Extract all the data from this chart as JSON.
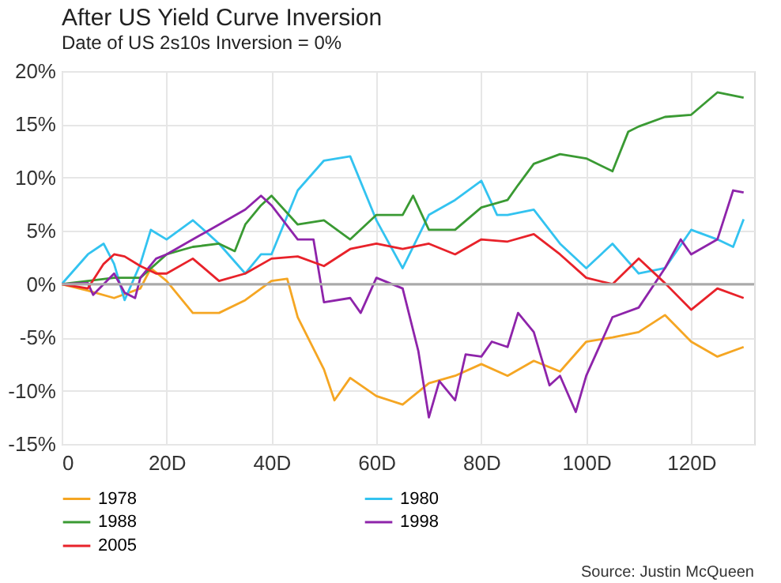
{
  "chart_data": {
    "type": "line",
    "title": "After US Yield Curve Inversion",
    "subtitle": "Date of US 2s10s Inversion = 0%",
    "annotations": [
      "Source: Justin McQueen"
    ],
    "xlim": [
      0,
      132
    ],
    "xticks": [
      0,
      {
        "value": 20,
        "label": "20D"
      },
      {
        "value": 40,
        "label": "40D"
      },
      {
        "value": 60,
        "label": "60D"
      },
      {
        "value": 80,
        "label": "80D"
      },
      {
        "value": 100,
        "label": "100D"
      },
      {
        "value": 120,
        "label": "120D"
      }
    ],
    "ylim": [
      -15,
      20
    ],
    "yticks": [
      {
        "value": -15,
        "label": "-15%"
      },
      {
        "value": -10,
        "label": "-10%"
      },
      {
        "value": -5,
        "label": "-5%"
      },
      {
        "value": 0,
        "label": "0%"
      },
      {
        "value": 5,
        "label": "5%"
      },
      {
        "value": 10,
        "label": "10%"
      },
      {
        "value": 15,
        "label": "15%"
      },
      {
        "value": 20,
        "label": "20%"
      }
    ],
    "grid": true,
    "legend": "bottom",
    "marker": "none",
    "line_style": "solid",
    "ref_lines": [
      {
        "axis": "y",
        "value": 0,
        "label": null,
        "color": "#aaaaaa"
      }
    ],
    "series": [
      {
        "name": "1978",
        "color": "#f5a623",
        "x": [
          0,
          5,
          10,
          15,
          17,
          20,
          25,
          30,
          35,
          40,
          43,
          45,
          50,
          52,
          55,
          60,
          65,
          70,
          75,
          80,
          85,
          90,
          95,
          100,
          105,
          110,
          115,
          120,
          125,
          130
        ],
        "values": [
          0,
          -0.6,
          -1.3,
          -0.4,
          1.5,
          0.3,
          -2.7,
          -2.7,
          -1.5,
          0.3,
          0.5,
          -3.1,
          -8,
          -10.9,
          -8.8,
          -10.5,
          -11.3,
          -9.3,
          -8.6,
          -7.5,
          -8.6,
          -7.2,
          -8.2,
          -5.4,
          -5,
          -4.5,
          -2.9,
          -5.4,
          -6.8,
          -5.9
        ]
      },
      {
        "name": "1980",
        "color": "#33c3f0",
        "x": [
          0,
          5,
          8,
          10,
          12,
          15,
          17,
          20,
          25,
          28,
          30,
          35,
          38,
          40,
          45,
          50,
          55,
          60,
          65,
          70,
          75,
          80,
          83,
          85,
          90,
          95,
          100,
          105,
          110,
          115,
          120,
          125,
          128,
          130
        ],
        "values": [
          0,
          2.8,
          3.8,
          1.9,
          -1.5,
          1.9,
          5.1,
          4.2,
          6,
          4.7,
          3.8,
          1,
          2.8,
          2.8,
          8.8,
          11.6,
          12,
          6,
          1.5,
          6.5,
          7.9,
          9.7,
          6.5,
          6.5,
          7,
          3.8,
          1.5,
          3.8,
          1,
          1.5,
          5.1,
          4.2,
          3.5,
          6.1
        ]
      },
      {
        "name": "1988",
        "color": "#3a9a33",
        "x": [
          0,
          5,
          10,
          15,
          20,
          25,
          30,
          33,
          35,
          38,
          40,
          45,
          50,
          55,
          60,
          65,
          67,
          70,
          75,
          80,
          85,
          87,
          90,
          95,
          100,
          105,
          108,
          110,
          115,
          120,
          125,
          130
        ],
        "values": [
          0,
          0.3,
          0.6,
          0.6,
          2.8,
          3.5,
          3.8,
          3.1,
          5.6,
          7.4,
          8.3,
          5.6,
          6,
          4.2,
          6.5,
          6.5,
          8.3,
          5.1,
          5.1,
          7.2,
          7.9,
          9.3,
          11.3,
          12.2,
          11.8,
          10.6,
          14.3,
          14.8,
          15.7,
          15.9,
          18,
          17.5
        ]
      },
      {
        "name": "1998",
        "color": "#8e24aa",
        "x": [
          0,
          5,
          6,
          10,
          12,
          14,
          15,
          18,
          20,
          25,
          30,
          35,
          38,
          40,
          45,
          48,
          50,
          55,
          57,
          60,
          65,
          68,
          70,
          72,
          75,
          77,
          80,
          82,
          85,
          87,
          90,
          93,
          95,
          98,
          100,
          105,
          110,
          115,
          118,
          120,
          125,
          128,
          130
        ],
        "values": [
          0,
          0.1,
          -1,
          1,
          -0.8,
          -1.3,
          0.6,
          2.4,
          2.8,
          4.2,
          5.6,
          7,
          8.3,
          7.4,
          4.2,
          4.2,
          -1.7,
          -1.3,
          -2.7,
          0.6,
          -0.4,
          -6.3,
          -12.5,
          -9.1,
          -10.9,
          -6.6,
          -6.8,
          -5.4,
          -5.9,
          -2.7,
          -4.5,
          -9.5,
          -8.6,
          -12,
          -8.6,
          -3.1,
          -2.2,
          1.5,
          4.2,
          2.8,
          4.2,
          8.8,
          8.6
        ]
      },
      {
        "name": "2005",
        "color": "#e8222a",
        "x": [
          0,
          5,
          8,
          10,
          12,
          15,
          18,
          20,
          25,
          30,
          35,
          40,
          45,
          50,
          55,
          60,
          65,
          70,
          75,
          80,
          85,
          90,
          95,
          100,
          105,
          110,
          115,
          120,
          125,
          130
        ],
        "values": [
          0,
          -0.4,
          1.9,
          2.8,
          2.6,
          1.7,
          1,
          1,
          2.4,
          0.3,
          1,
          2.4,
          2.6,
          1.7,
          3.3,
          3.8,
          3.3,
          3.8,
          2.8,
          4.2,
          4,
          4.7,
          2.8,
          0.6,
          0,
          2.4,
          0.1,
          -2.4,
          -0.4,
          -1.3
        ]
      }
    ]
  }
}
